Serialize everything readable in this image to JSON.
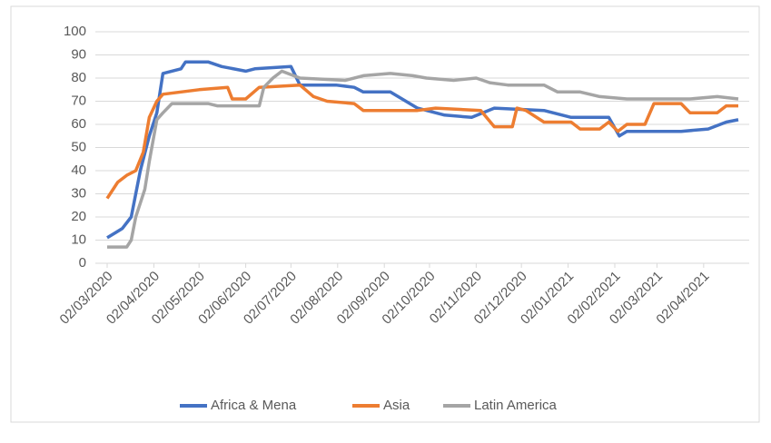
{
  "chart_data": {
    "type": "line",
    "ylim": [
      0,
      100
    ],
    "yticks": [
      0,
      10,
      20,
      30,
      40,
      50,
      60,
      70,
      80,
      90,
      100
    ],
    "grid": true,
    "xlim": [
      "2020-03-02",
      "2021-04-25"
    ],
    "xticks": [
      {
        "value": "2020-03-02",
        "label": "02/03/2020"
      },
      {
        "value": "2020-04-02",
        "label": "02/04/2020"
      },
      {
        "value": "2020-05-02",
        "label": "02/05/2020"
      },
      {
        "value": "2020-06-02",
        "label": "02/06/2020"
      },
      {
        "value": "2020-07-02",
        "label": "02/07/2020"
      },
      {
        "value": "2020-08-02",
        "label": "02/08/2020"
      },
      {
        "value": "2020-09-02",
        "label": "02/09/2020"
      },
      {
        "value": "2020-10-02",
        "label": "02/10/2020"
      },
      {
        "value": "2020-11-02",
        "label": "02/11/2020"
      },
      {
        "value": "2020-12-02",
        "label": "02/12/2020"
      },
      {
        "value": "2021-01-02",
        "label": "02/01/2021"
      },
      {
        "value": "2021-02-02",
        "label": "02/02/2021"
      },
      {
        "value": "2021-03-02",
        "label": "02/03/2021"
      },
      {
        "value": "2021-04-02",
        "label": "02/04/2021"
      }
    ],
    "legend": "bottom",
    "series": [
      {
        "name": "Africa & Mena",
        "color": "#4472c4",
        "x": [
          "2020-03-02",
          "2020-03-12",
          "2020-03-18",
          "2020-03-24",
          "2020-03-30",
          "2020-04-04",
          "2020-04-08",
          "2020-04-20",
          "2020-04-23",
          "2020-05-08",
          "2020-05-17",
          "2020-06-02",
          "2020-06-08",
          "2020-07-02",
          "2020-07-08",
          "2020-08-01",
          "2020-08-13",
          "2020-08-19",
          "2020-09-06",
          "2020-09-24",
          "2020-10-12",
          "2020-10-30",
          "2020-11-14",
          "2020-12-17",
          "2021-01-04",
          "2021-01-29",
          "2021-02-05",
          "2021-02-10",
          "2021-03-18",
          "2021-04-05",
          "2021-04-17",
          "2021-04-25"
        ],
        "values": [
          11,
          15,
          20,
          40,
          55,
          65,
          82,
          84,
          87,
          87,
          85,
          83,
          84,
          85,
          77,
          77,
          76,
          74,
          74,
          67,
          64,
          63,
          67,
          66,
          63,
          63,
          55,
          57,
          57,
          58,
          61,
          62
        ]
      },
      {
        "name": "Asia",
        "color": "#ed7d31",
        "x": [
          "2020-03-02",
          "2020-03-09",
          "2020-03-15",
          "2020-03-21",
          "2020-03-26",
          "2020-03-30",
          "2020-04-04",
          "2020-04-08",
          "2020-05-02",
          "2020-05-21",
          "2020-05-24",
          "2020-06-02",
          "2020-06-11",
          "2020-07-08",
          "2020-07-17",
          "2020-07-26",
          "2020-08-13",
          "2020-08-19",
          "2020-09-24",
          "2020-10-06",
          "2020-11-05",
          "2020-11-14",
          "2020-11-26",
          "2020-11-29",
          "2020-12-05",
          "2020-12-17",
          "2021-01-04",
          "2021-01-10",
          "2021-01-23",
          "2021-01-29",
          "2021-02-04",
          "2021-02-10",
          "2021-02-22",
          "2021-02-28",
          "2021-03-18",
          "2021-03-24",
          "2021-04-11",
          "2021-04-17",
          "2021-04-25"
        ],
        "values": [
          28,
          35,
          38,
          40,
          48,
          63,
          70,
          73,
          75,
          76,
          71,
          71,
          76,
          77,
          72,
          70,
          69,
          66,
          66,
          67,
          66,
          59,
          59,
          67,
          66,
          61,
          61,
          58,
          58,
          61,
          57,
          60,
          60,
          69,
          69,
          65,
          65,
          68,
          68
        ]
      },
      {
        "name": "Latin America",
        "color": "#a5a5a5",
        "x": [
          "2020-03-02",
          "2020-03-15",
          "2020-03-18",
          "2020-03-21",
          "2020-03-27",
          "2020-03-30",
          "2020-04-04",
          "2020-04-08",
          "2020-04-14",
          "2020-05-08",
          "2020-05-14",
          "2020-06-11",
          "2020-06-14",
          "2020-06-20",
          "2020-06-26",
          "2020-07-08",
          "2020-08-07",
          "2020-08-19",
          "2020-09-06",
          "2020-09-21",
          "2020-09-30",
          "2020-10-18",
          "2020-11-02",
          "2020-11-11",
          "2020-11-23",
          "2020-12-17",
          "2020-12-26",
          "2021-01-10",
          "2021-01-23",
          "2021-02-10",
          "2021-03-24",
          "2021-04-11",
          "2021-04-25"
        ],
        "values": [
          7,
          7,
          10,
          20,
          32,
          44,
          62,
          65,
          69,
          69,
          68,
          68,
          76,
          80,
          83,
          80,
          79,
          81,
          82,
          81,
          80,
          79,
          80,
          78,
          77,
          77,
          74,
          74,
          72,
          71,
          71,
          72,
          71
        ]
      }
    ]
  }
}
